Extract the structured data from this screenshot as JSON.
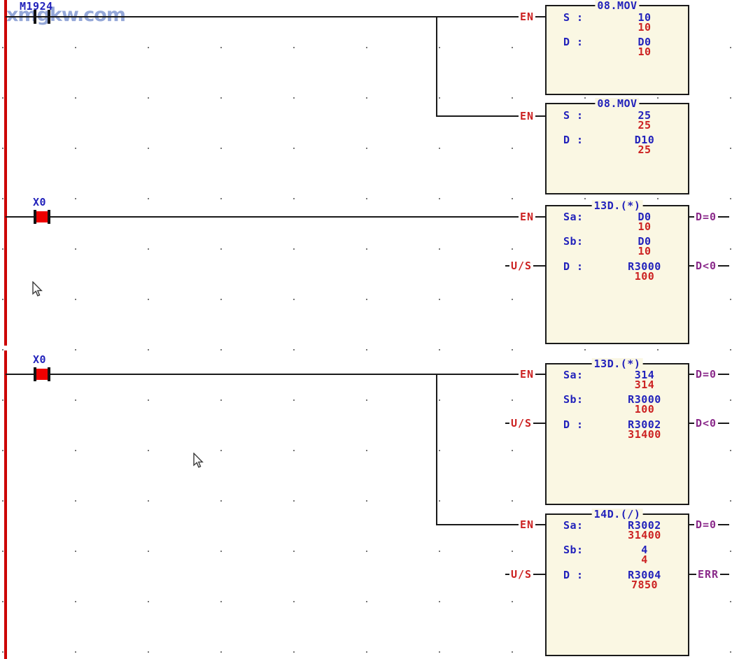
{
  "watermark": {
    "text": "xmgkw.com"
  },
  "colors": {
    "background": "#ffffff",
    "power_rail": "#cc0000",
    "wire": "#1a1a1a",
    "block_fill": "#faf7e3",
    "operand_blue": "#2222bb",
    "value_red": "#cc2222",
    "output_purple": "#8b2b8b",
    "contact_active_fill": "#ee0000",
    "watermark_blue": "#8fa3d6"
  },
  "contacts": [
    {
      "label": "M1924",
      "active": false
    },
    {
      "label": "X0",
      "active": true
    },
    {
      "label": "X0",
      "active": true
    }
  ],
  "blocks": [
    {
      "title": "08.MOV",
      "inputs": [
        {
          "label": "EN"
        }
      ],
      "outputs": [],
      "params": [
        {
          "label": "S :",
          "operand": "10",
          "value": "10"
        },
        {
          "label": "D :",
          "operand": "D0",
          "value": "10"
        }
      ]
    },
    {
      "title": "08.MOV",
      "inputs": [
        {
          "label": "EN"
        }
      ],
      "outputs": [],
      "params": [
        {
          "label": "S :",
          "operand": "25",
          "value": "25"
        },
        {
          "label": "D :",
          "operand": "D10",
          "value": "25"
        }
      ]
    },
    {
      "title": "13D.(*)",
      "inputs": [
        {
          "label": "EN"
        },
        {
          "label": "U/S"
        }
      ],
      "outputs": [
        {
          "label": "D=0"
        },
        {
          "label": "D<0"
        }
      ],
      "params": [
        {
          "label": "Sa:",
          "operand": "D0",
          "value": "10"
        },
        {
          "label": "Sb:",
          "operand": "D0",
          "value": "10"
        },
        {
          "label": "D :",
          "operand": "R3000",
          "value": "100"
        }
      ]
    },
    {
      "title": "13D.(*)",
      "inputs": [
        {
          "label": "EN"
        },
        {
          "label": "U/S"
        }
      ],
      "outputs": [
        {
          "label": "D=0"
        },
        {
          "label": "D<0"
        }
      ],
      "params": [
        {
          "label": "Sa:",
          "operand": "314",
          "value": "314"
        },
        {
          "label": "Sb:",
          "operand": "R3000",
          "value": "100"
        },
        {
          "label": "D :",
          "operand": "R3002",
          "value": "31400"
        }
      ]
    },
    {
      "title": "14D.(/)",
      "inputs": [
        {
          "label": "EN"
        },
        {
          "label": "U/S"
        }
      ],
      "outputs": [
        {
          "label": "D=0"
        },
        {
          "label": "ERR"
        }
      ],
      "params": [
        {
          "label": "Sa:",
          "operand": "R3002",
          "value": "31400"
        },
        {
          "label": "Sb:",
          "operand": "4",
          "value": "4"
        },
        {
          "label": "D :",
          "operand": "R3004",
          "value": "7850"
        }
      ]
    }
  ]
}
